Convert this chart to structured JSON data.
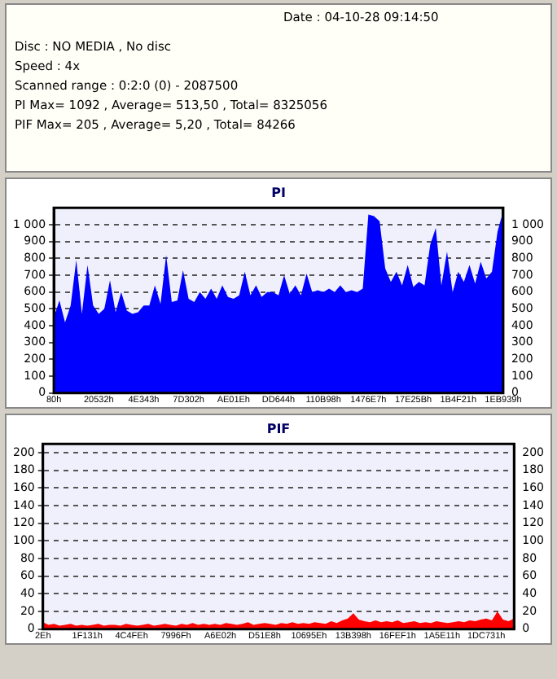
{
  "chart_data": [
    {
      "type": "other",
      "annotations": [
        "Date : 04-10-28 09:14:50",
        "Disc : NO MEDIA , No disc",
        "Speed : 4x",
        "Scanned range : 0:2:0 (0) - 2087500",
        "PI Max= 1092 , Average= 513,50 , Total= 8325056",
        "PIF Max= 205 , Average= 5,20 , Total= 84266"
      ]
    },
    {
      "type": "area",
      "title": "PI",
      "categories": [
        "80h",
        null,
        null,
        null,
        null,
        null,
        null,
        null,
        "20532h",
        null,
        null,
        null,
        null,
        null,
        null,
        null,
        "4E343h",
        null,
        null,
        null,
        null,
        null,
        null,
        null,
        "7D302h",
        null,
        null,
        null,
        null,
        null,
        null,
        null,
        "AE01Eh",
        null,
        null,
        null,
        null,
        null,
        null,
        null,
        "DD644h",
        null,
        null,
        null,
        null,
        null,
        null,
        null,
        "110B98h",
        null,
        null,
        null,
        null,
        null,
        null,
        null,
        "1476E7h",
        null,
        null,
        null,
        null,
        null,
        null,
        null,
        "17E25Bh",
        null,
        null,
        null,
        null,
        null,
        null,
        null,
        "1B4F21h",
        null,
        null,
        null,
        null,
        null,
        null,
        null,
        "1EB939h"
      ],
      "series": [
        {
          "color": "#0000ff",
          "values": [
            450,
            550,
            420,
            520,
            790,
            470,
            760,
            520,
            470,
            500,
            670,
            480,
            600,
            490,
            470,
            480,
            520,
            520,
            640,
            530,
            820,
            540,
            550,
            730,
            560,
            540,
            600,
            560,
            620,
            560,
            640,
            570,
            560,
            580,
            720,
            580,
            640,
            570,
            600,
            600,
            580,
            700,
            590,
            640,
            580,
            710,
            600,
            610,
            600,
            620,
            600,
            640,
            600,
            610,
            600,
            620,
            1060,
            1050,
            1020,
            740,
            660,
            720,
            640,
            760,
            630,
            660,
            640,
            880,
            980,
            640,
            840,
            600,
            720,
            660,
            760,
            650,
            780,
            680,
            720,
            960,
            1080
          ]
        }
      ],
      "ylim": [
        0,
        1100
      ],
      "yticks": [
        0,
        100,
        200,
        300,
        400,
        500,
        600,
        700,
        800,
        900,
        {
          "value": 1000,
          "label": "1 000"
        }
      ],
      "y2lim": [
        0,
        1100
      ],
      "y2ticks": [
        0,
        100,
        200,
        300,
        400,
        500,
        600,
        700,
        800,
        900,
        {
          "value": 1000,
          "label": "1 000"
        }
      ],
      "grid": "y"
    },
    {
      "type": "area",
      "title": "PIF",
      "categories": [
        "2Eh",
        null,
        null,
        null,
        null,
        null,
        null,
        null,
        "1F131h",
        null,
        null,
        null,
        null,
        null,
        null,
        null,
        "4C4FEh",
        null,
        null,
        null,
        null,
        null,
        null,
        null,
        "7996Fh",
        null,
        null,
        null,
        null,
        null,
        null,
        null,
        "A6E02h",
        null,
        null,
        null,
        null,
        null,
        null,
        null,
        "D51E8h",
        null,
        null,
        null,
        null,
        null,
        null,
        null,
        "10695Eh",
        null,
        null,
        null,
        null,
        null,
        null,
        null,
        "13B398h",
        null,
        null,
        null,
        null,
        null,
        null,
        null,
        "16FEF1h",
        null,
        null,
        null,
        null,
        null,
        null,
        null,
        "1A5E11h",
        null,
        null,
        null,
        null,
        null,
        null,
        null,
        "1DC731h",
        null,
        null,
        null,
        null,
        null
      ],
      "series": [
        {
          "color": "#ff0000",
          "values": [
            8,
            5,
            6,
            4,
            5,
            6,
            4,
            5,
            4,
            5,
            6,
            4,
            5,
            5,
            4,
            6,
            5,
            4,
            5,
            6,
            4,
            5,
            6,
            5,
            4,
            6,
            5,
            7,
            5,
            6,
            5,
            6,
            5,
            7,
            6,
            5,
            6,
            8,
            5,
            6,
            7,
            6,
            5,
            7,
            6,
            8,
            6,
            7,
            6,
            8,
            7,
            6,
            9,
            7,
            10,
            12,
            18,
            11,
            9,
            8,
            10,
            8,
            9,
            8,
            10,
            7,
            8,
            9,
            7,
            8,
            7,
            9,
            8,
            7,
            8,
            9,
            8,
            10,
            9,
            11,
            12,
            10,
            20,
            11,
            9,
            12
          ]
        }
      ],
      "ylim": [
        0,
        210
      ],
      "yticks": [
        0,
        20,
        40,
        60,
        80,
        100,
        120,
        140,
        160,
        180,
        200
      ],
      "y2lim": [
        0,
        210
      ],
      "y2ticks": [
        0,
        20,
        40,
        60,
        80,
        100,
        120,
        140,
        160,
        180,
        200
      ],
      "grid": "y"
    }
  ]
}
